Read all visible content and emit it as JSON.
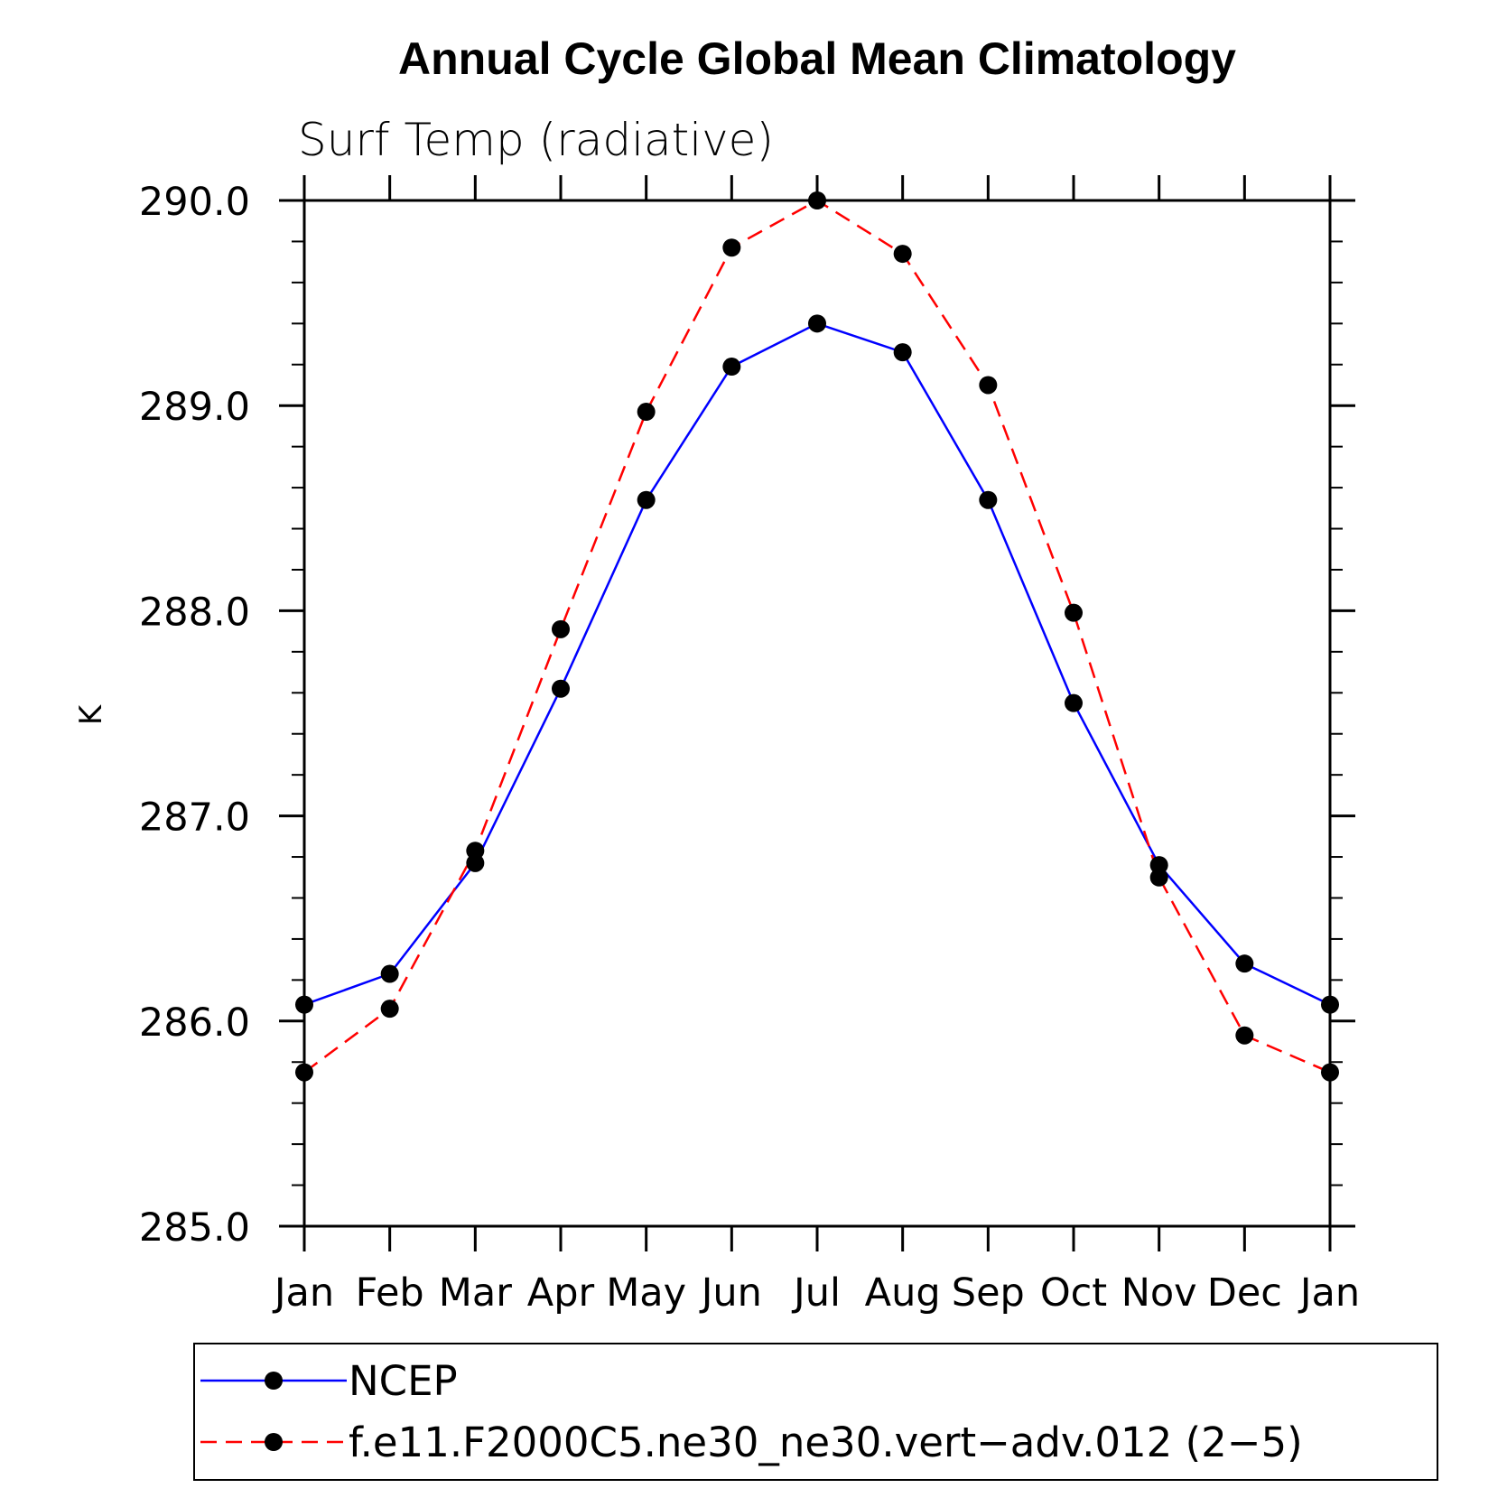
{
  "colors": {
    "ncep": "#0000ff",
    "model": "#ff0000",
    "marker": "#000000",
    "axis": "#000000"
  },
  "chart_data": {
    "type": "line",
    "title": "Annual Cycle Global Mean Climatology",
    "subtitle": "Surf Temp (radiative)",
    "xlabel": "",
    "ylabel": "K",
    "categories": [
      "Jan",
      "Feb",
      "Mar",
      "Apr",
      "May",
      "Jun",
      "Jul",
      "Aug",
      "Sep",
      "Oct",
      "Nov",
      "Dec",
      "Jan"
    ],
    "ylim": [
      285.0,
      290.0
    ],
    "yticks": [
      "285.0",
      "286.0",
      "287.0",
      "288.0",
      "289.0",
      "290.0"
    ],
    "yminor_step": 0.2,
    "grid": false,
    "legend_position": "bottom",
    "series": [
      {
        "name": "NCEP",
        "style": "solid",
        "values": [
          286.08,
          286.23,
          286.77,
          287.62,
          288.54,
          289.19,
          289.4,
          289.26,
          288.54,
          287.55,
          286.76,
          286.28,
          286.08
        ]
      },
      {
        "name": "f.e11.F2000C5.ne30_ne30.vert−adv.012 (2−5)",
        "style": "dashed",
        "values": [
          285.75,
          286.06,
          286.83,
          287.91,
          288.97,
          289.77,
          290.0,
          289.74,
          289.1,
          287.99,
          286.7,
          285.93,
          285.75
        ]
      }
    ]
  }
}
